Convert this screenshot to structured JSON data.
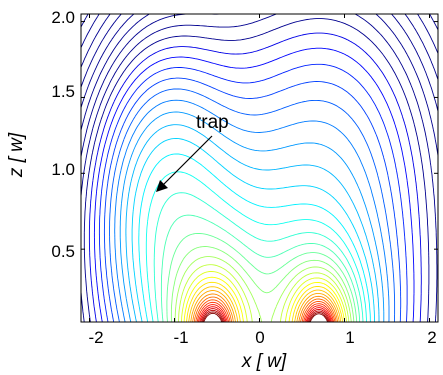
{
  "chart_data": {
    "type": "contour",
    "xlabel_var": "x",
    "xlabel_unit": "[ w]",
    "ylabel_var": "z",
    "ylabel_unit": "[ w]",
    "xlim": [
      -2.1,
      2.1
    ],
    "ylim": [
      0.02,
      2.05
    ],
    "x_ticks": [
      -2,
      -1,
      0,
      1,
      2
    ],
    "x_tick_labels": [
      "-2",
      "-1",
      "0",
      "1",
      "2"
    ],
    "y_ticks": [
      0.5,
      1.0,
      1.5,
      2.0
    ],
    "y_tick_labels": [
      "0.5",
      "1.0",
      "1.5",
      "2.0"
    ],
    "grid": false,
    "colormap": "jet",
    "sources": [
      {
        "x": -0.55,
        "z": 0.0
      },
      {
        "x": 0.7,
        "z": 0.0
      }
    ],
    "trap": {
      "x": -1.15,
      "z": 0.85
    },
    "annotation": {
      "text": "trap",
      "x": -0.5,
      "z": 1.25
    }
  },
  "colors": {
    "low": "#00008f",
    "mid": "#7fff7f",
    "high": "#c80000",
    "axes": "#000000",
    "background": "#ffffff"
  }
}
